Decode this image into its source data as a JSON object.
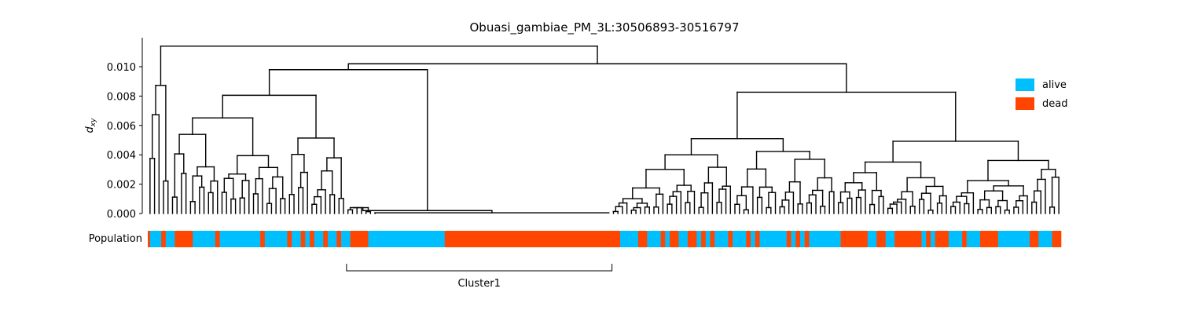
{
  "chart_data": {
    "type": "dendrogram",
    "title": "Obuasi_gambiae_PM_3L:30506893-30516797",
    "ylabel": "d",
    "ylabel_sub": "xy",
    "ylim": [
      0,
      0.012
    ],
    "yticks": [
      0.0,
      0.002,
      0.004,
      0.006,
      0.008,
      0.01
    ],
    "ytick_labels": [
      "0.000",
      "0.002",
      "0.004",
      "0.006",
      "0.008",
      "0.010"
    ],
    "root_height": 0.0114,
    "population_label": "Population",
    "legend": [
      {
        "name": "alive",
        "color": "#00BFFF"
      },
      {
        "name": "dead",
        "color": "#FF4500"
      }
    ],
    "population_segments": [
      [
        "dead",
        0.5
      ],
      [
        "alive",
        2.5
      ],
      [
        "dead",
        1
      ],
      [
        "alive",
        2
      ],
      [
        "dead",
        4
      ],
      [
        "alive",
        5
      ],
      [
        "dead",
        1
      ],
      [
        "alive",
        9
      ],
      [
        "dead",
        1
      ],
      [
        "alive",
        5
      ],
      [
        "dead",
        1
      ],
      [
        "alive",
        2
      ],
      [
        "dead",
        1
      ],
      [
        "alive",
        1
      ],
      [
        "dead",
        1
      ],
      [
        "alive",
        2
      ],
      [
        "dead",
        1
      ],
      [
        "alive",
        2
      ],
      [
        "dead",
        1
      ],
      [
        "alive",
        2
      ],
      [
        "dead",
        4
      ],
      [
        "alive",
        17
      ],
      [
        "dead",
        39
      ],
      [
        "alive",
        4
      ],
      [
        "dead",
        2
      ],
      [
        "alive",
        3
      ],
      [
        "dead",
        1
      ],
      [
        "alive",
        1
      ],
      [
        "dead",
        2
      ],
      [
        "alive",
        2
      ],
      [
        "dead",
        2
      ],
      [
        "alive",
        1
      ],
      [
        "dead",
        1
      ],
      [
        "alive",
        1
      ],
      [
        "dead",
        1
      ],
      [
        "alive",
        3
      ],
      [
        "dead",
        1
      ],
      [
        "alive",
        3
      ],
      [
        "dead",
        1
      ],
      [
        "alive",
        1
      ],
      [
        "dead",
        1
      ],
      [
        "alive",
        6
      ],
      [
        "dead",
        1
      ],
      [
        "alive",
        1
      ],
      [
        "dead",
        1
      ],
      [
        "alive",
        1
      ],
      [
        "dead",
        1
      ],
      [
        "alive",
        7
      ],
      [
        "dead",
        6
      ],
      [
        "alive",
        2
      ],
      [
        "dead",
        2
      ],
      [
        "alive",
        2
      ],
      [
        "dead",
        6
      ],
      [
        "alive",
        1
      ],
      [
        "dead",
        1
      ],
      [
        "alive",
        1
      ],
      [
        "dead",
        3
      ],
      [
        "alive",
        3
      ],
      [
        "dead",
        1
      ],
      [
        "alive",
        3
      ],
      [
        "dead",
        4
      ],
      [
        "alive",
        7
      ],
      [
        "dead",
        2
      ],
      [
        "alive",
        3
      ],
      [
        "dead",
        2
      ]
    ],
    "annotation": {
      "label": "Cluster1",
      "x_range": [
        44,
        103
      ]
    }
  }
}
